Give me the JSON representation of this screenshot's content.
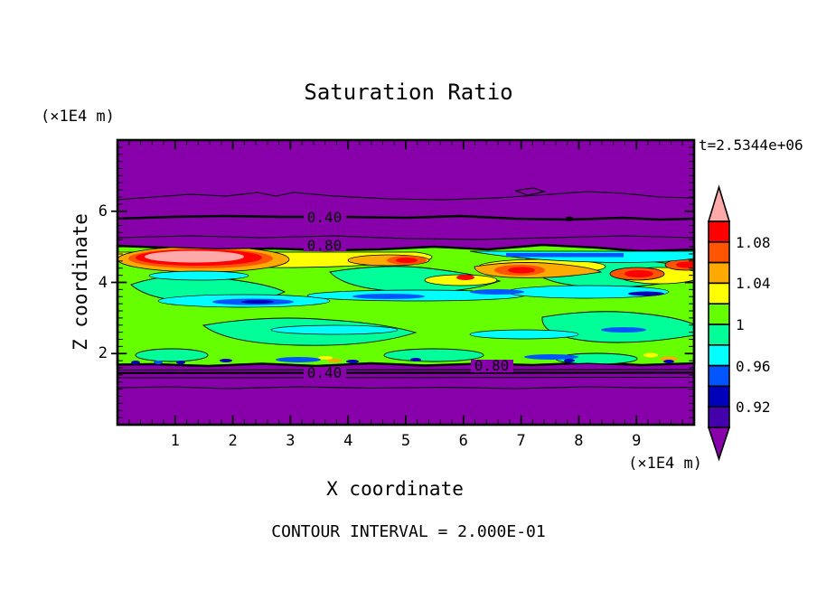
{
  "title": "Saturation Ratio",
  "time_annotation": "t=2.5344e+06",
  "footer_text": "CONTOUR INTERVAL = 2.000E-01",
  "y_axis": {
    "label": "Z coordinate",
    "unit": "(×1E4 m)",
    "tick_labels": [
      "2",
      "4",
      "6"
    ],
    "tick_values": [
      2,
      4,
      6
    ]
  },
  "x_axis": {
    "label": "X coordinate",
    "unit": "(×1E4 m)",
    "tick_labels": [
      "1",
      "2",
      "3",
      "4",
      "5",
      "6",
      "7",
      "8",
      "9"
    ],
    "tick_values": [
      1,
      2,
      3,
      4,
      5,
      6,
      7,
      8,
      9
    ]
  },
  "colorbar": {
    "labels": [
      "1.08",
      "1.04",
      "1",
      "0.96",
      "0.92"
    ],
    "cell_colors_top_to_bottom": [
      "#FF0000",
      "#FF5500",
      "#FFAA00",
      "#FFFF00",
      "#66FF00",
      "#00FF99",
      "#00FFFF",
      "#0055FF",
      "#0000BB",
      "#4400AA"
    ],
    "over_color": "#FFAAAA",
    "under_color": "#8800AA"
  },
  "contour_labels": [
    "0.40",
    "0.80",
    "0.80",
    "0.40"
  ],
  "chart_data": {
    "type": "heatmap",
    "subtype": "filled_contour",
    "title": "Saturation Ratio",
    "xlabel": "X coordinate",
    "ylabel": "Z coordinate",
    "x_unit": "(×1E4 m)",
    "y_unit": "(×1E4 m)",
    "xlim": [
      0,
      10
    ],
    "ylim": [
      0,
      8
    ],
    "x_ticks": [
      1,
      2,
      3,
      4,
      5,
      6,
      7,
      8,
      9
    ],
    "y_ticks": [
      2,
      4,
      6
    ],
    "time": "t=2.5344e+06",
    "contour_interval": "2.000E-01",
    "labeled_contour_values": [
      0.4,
      0.8
    ],
    "colorbar_tick_values": [
      1.08,
      1.04,
      1.0,
      0.96,
      0.92
    ],
    "color_levels": {
      "boundaries": [
        0.9,
        0.92,
        0.94,
        0.96,
        0.98,
        1.0,
        1.02,
        1.04,
        1.06,
        1.08,
        1.1
      ],
      "colors_low_to_high": [
        "#4400AA",
        "#0000BB",
        "#0055FF",
        "#00FFFF",
        "#00FF99",
        "#66FF00",
        "#FFFF00",
        "#FFAA00",
        "#FF5500",
        "#FF0000"
      ],
      "under_color": "#8800AA",
      "over_color": "#FFAAAA"
    },
    "field_description": {
      "background": "saturation ratio < 0.2 (purple) for z above ~5.0 and below ~1.5",
      "contour_lines": [
        {
          "value": 0.2,
          "z_upper": 6.3,
          "z_lower": 1.2
        },
        {
          "value": 0.4,
          "z_upper": 5.85,
          "z_lower": 1.45
        },
        {
          "value": 0.6,
          "z_upper": 5.3,
          "z_lower": 1.35
        },
        {
          "value": 0.8,
          "z_upper": 4.95,
          "z_lower": 1.6
        }
      ],
      "saturated_band": "turbulent band with S between 0.9 and 1.1 spanning z of roughly 1.6 to 5.0, mostly greens (0.98 to 1.02) with cyan/blue/navy undersaturated streaks mid-band and yellow/orange/red supersaturated streaks along the band top",
      "maximum": "S > 1.10 (pink) near x of 0.5 to 3.3, z of 4.7 to 4.9",
      "supersaturated_patches_x_ranges": [
        [
          0.3,
          3.3
        ],
        [
          4.3,
          5.8
        ],
        [
          6.3,
          7.6
        ],
        [
          8.6,
          9.9
        ]
      ]
    }
  }
}
